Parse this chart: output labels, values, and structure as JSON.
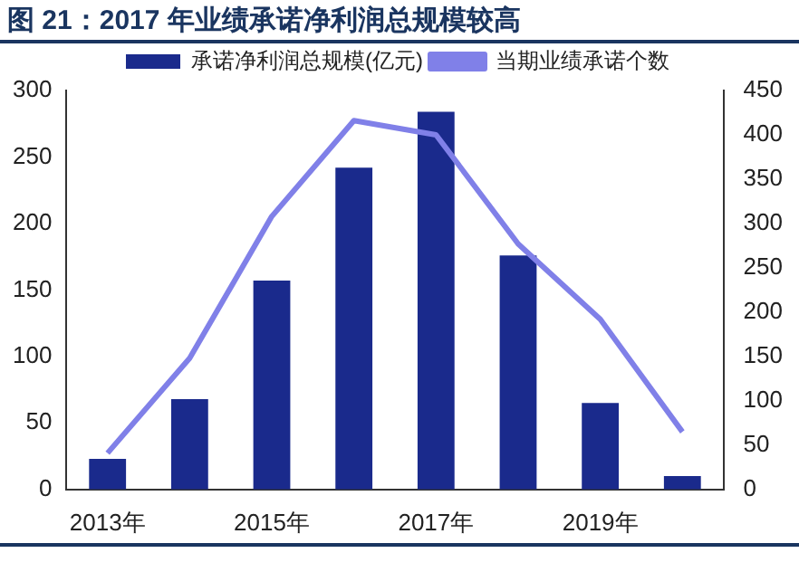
{
  "chart_data": {
    "type": "bar",
    "title": "图 21：2017 年业绩承诺净利润总规模较高",
    "categories": [
      "2013年",
      null,
      "2015年",
      null,
      "2017年",
      null,
      "2019年",
      null
    ],
    "series": [
      {
        "name": "承诺净利润总规模(亿元)",
        "color": "#1a2a8c",
        "values": [
          23,
          68,
          157,
          242,
          284,
          176,
          65,
          10
        ]
      },
      {
        "name": "当期业绩承诺个数",
        "type": "line",
        "axis": "y2",
        "color": "#8080e8",
        "values": [
          41,
          148,
          308,
          416,
          400,
          277,
          192,
          65
        ]
      }
    ],
    "ylim": [
      0,
      300
    ],
    "yticks": [
      0,
      50,
      100,
      150,
      200,
      250,
      300
    ],
    "y2lim": [
      0,
      450
    ],
    "y2ticks": [
      0,
      50,
      100,
      150,
      200,
      250,
      300,
      350,
      400,
      450
    ],
    "grid": false,
    "legend": "top",
    "marker": "none"
  }
}
